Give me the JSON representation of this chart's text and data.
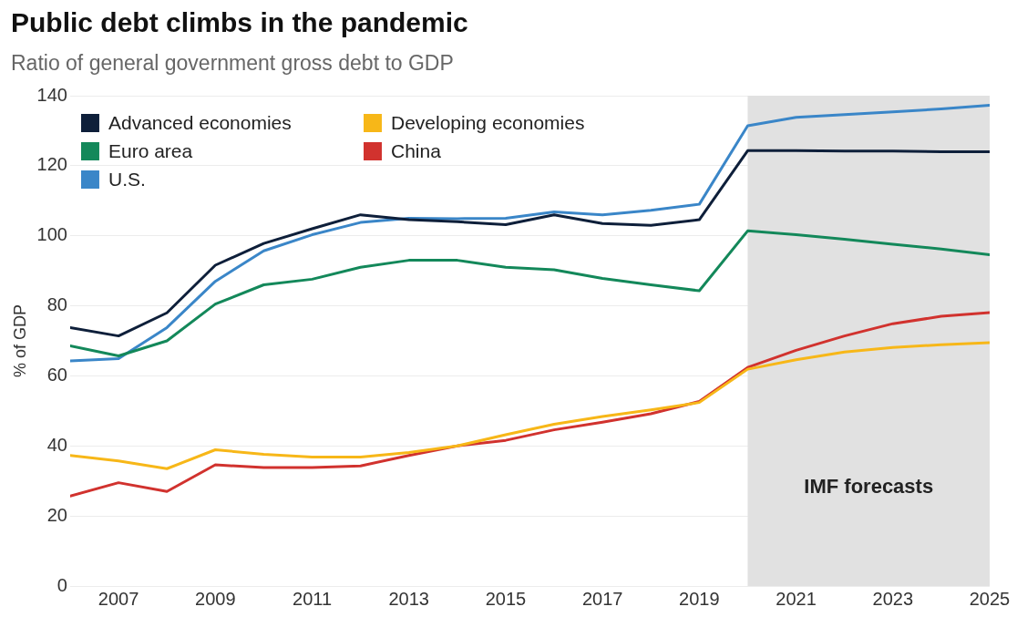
{
  "chart_data": {
    "type": "line",
    "title": "Public debt climbs in the pandemic",
    "subtitle": "Ratio of general government gross debt to GDP",
    "ylabel": "% of GDP",
    "x": [
      2006,
      2007,
      2008,
      2009,
      2010,
      2011,
      2012,
      2013,
      2014,
      2015,
      2016,
      2017,
      2018,
      2019,
      2020,
      2021,
      2022,
      2023,
      2024,
      2025
    ],
    "series": [
      {
        "name": "Advanced economies",
        "color": "#0e1f3a",
        "values": [
          73.8,
          71.4,
          78,
          91.6,
          97.8,
          102,
          106,
          104.6,
          104,
          103.2,
          106,
          103.5,
          103,
          104.6,
          124.3,
          124.3,
          124.2,
          124.2,
          124,
          124
        ]
      },
      {
        "name": "Euro area",
        "color": "#13885a",
        "values": [
          68.6,
          65.7,
          70,
          80.5,
          86,
          87.6,
          91,
          93,
          93,
          91,
          90.3,
          87.8,
          86,
          84.3,
          101.4,
          100.3,
          99,
          97.6,
          96.2,
          94.6
        ]
      },
      {
        "name": "U.S.",
        "color": "#3a86c8",
        "values": [
          64.3,
          64.9,
          73.8,
          87,
          95.7,
          100.3,
          103.8,
          105,
          104.9,
          105,
          106.8,
          106,
          107.3,
          109,
          131.4,
          133.8,
          134.6,
          135.4,
          136.2,
          137.3
        ]
      },
      {
        "name": "Developing economies",
        "color": "#f7b718",
        "values": [
          37.3,
          35.7,
          33.5,
          38.9,
          37.6,
          36.8,
          36.8,
          38.1,
          40,
          43.2,
          46.2,
          48.4,
          50.3,
          52.4,
          61.9,
          64.6,
          66.8,
          68.1,
          68.9,
          69.5
        ]
      },
      {
        "name": "China",
        "color": "#d1322e",
        "values": [
          25.7,
          29.5,
          27,
          34.6,
          33.8,
          33.8,
          34.3,
          37.3,
          40,
          41.6,
          44.6,
          46.8,
          49.2,
          52.7,
          62.4,
          67.3,
          71.4,
          74.9,
          77,
          78.1
        ]
      }
    ],
    "xlim": [
      2006,
      2025
    ],
    "xticks": [
      2007,
      2009,
      2011,
      2013,
      2015,
      2017,
      2019,
      2021,
      2023,
      2025
    ],
    "ylim": [
      0,
      140
    ],
    "yticks": [
      0,
      20,
      40,
      60,
      80,
      100,
      120,
      140
    ],
    "bands": [
      {
        "axis": "x",
        "from": 2020,
        "to": 2025,
        "label": "IMF forecasts",
        "color": "#e1e1e1"
      }
    ],
    "grid": "y",
    "legend": "top left",
    "marker": "none",
    "line_style": "solid"
  }
}
